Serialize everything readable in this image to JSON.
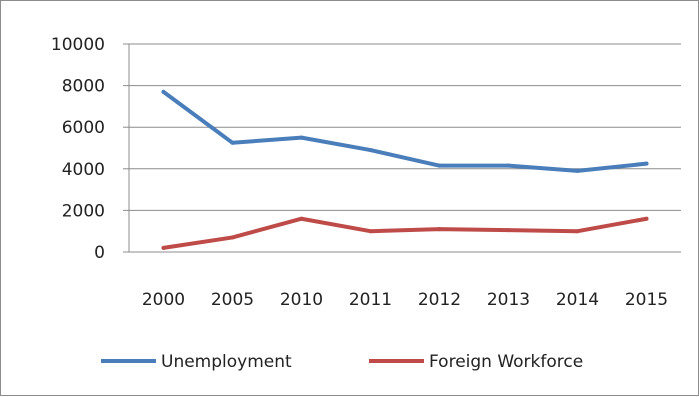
{
  "chart_data": {
    "type": "line",
    "title": "",
    "xlabel": "",
    "ylabel": "",
    "categories": [
      "2000",
      "2005",
      "2010",
      "2011",
      "2012",
      "2013",
      "2014",
      "2015"
    ],
    "ylim": [
      0,
      10000
    ],
    "yticks": [
      0,
      2000,
      4000,
      6000,
      8000,
      10000
    ],
    "grid": true,
    "legend_position": "bottom",
    "series": [
      {
        "name": "Unemployment",
        "color": "#4a7ebb",
        "values": [
          7700,
          5250,
          5500,
          4900,
          4150,
          4150,
          3900,
          4250
        ]
      },
      {
        "name": "Foreign Workforce",
        "color": "#be4b48",
        "values": [
          200,
          700,
          1600,
          1000,
          1100,
          1050,
          1000,
          1600
        ]
      }
    ]
  }
}
